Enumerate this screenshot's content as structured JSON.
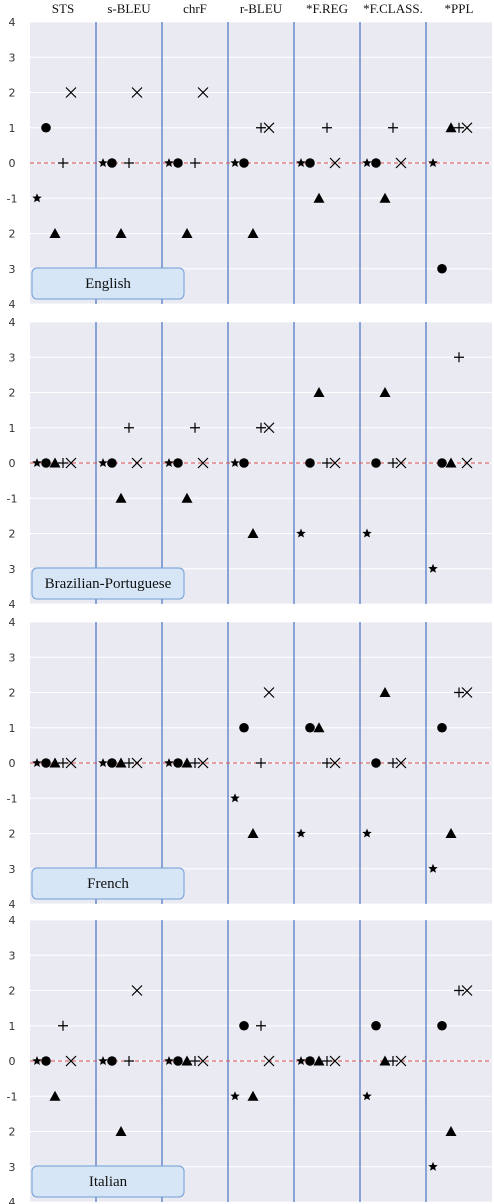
{
  "chart_data": {
    "type": "scatter",
    "metrics": [
      "STS",
      "s-BLEU",
      "chrF",
      "r-BLEU",
      "*F.REG",
      "*F.CLASS.",
      "*PPL"
    ],
    "yticks": [
      "4",
      "3",
      "2",
      "1",
      "0",
      "-1",
      "2",
      "3",
      "4"
    ],
    "ylim": [
      -4,
      4
    ],
    "reference_line": 0,
    "marker_types": [
      "star",
      "circle",
      "plus",
      "triangle",
      "x"
    ],
    "colors": {
      "panel_bg": "#eaeaf2",
      "separator": "#4a72c4",
      "reference_line": "#d9534f",
      "legend_bg": "#d6e6f7",
      "legend_border": "#6f9fd6",
      "marker": "#000000"
    },
    "panels": [
      {
        "language": "English",
        "points": {
          "STS": {
            "star": -1,
            "circle": 1,
            "plus": 0,
            "triangle": -2,
            "x": 2
          },
          "s-BLEU": {
            "star": 0,
            "circle": 0,
            "plus": 0,
            "triangle": -2,
            "x": 2
          },
          "chrF": {
            "star": 0,
            "circle": 0,
            "plus": 0,
            "triangle": -2,
            "x": 2
          },
          "r-BLEU": {
            "star": 0,
            "circle": 0,
            "plus": 1,
            "triangle": -2,
            "x": 1
          },
          "*F.REG": {
            "star": 0,
            "circle": 0,
            "plus": 1,
            "triangle": -1,
            "x": 0
          },
          "*F.CLASS.": {
            "star": 0,
            "circle": 0,
            "plus": 1,
            "triangle": -1,
            "x": 0
          },
          "*PPL": {
            "star": 0,
            "circle": -3,
            "plus": 1,
            "triangle": 1,
            "x": 1
          }
        }
      },
      {
        "language": "Brazilian-Portuguese",
        "points": {
          "STS": {
            "star": 0,
            "circle": 0,
            "plus": 0,
            "triangle": 0,
            "x": 0
          },
          "s-BLEU": {
            "star": 0,
            "circle": 0,
            "plus": 1,
            "triangle": -1,
            "x": 0
          },
          "chrF": {
            "star": 0,
            "circle": 0,
            "plus": 1,
            "triangle": -1,
            "x": 0
          },
          "r-BLEU": {
            "star": 0,
            "circle": 0,
            "plus": 1,
            "triangle": -2,
            "x": 1
          },
          "*F.REG": {
            "star": -2,
            "circle": 0,
            "plus": 0,
            "triangle": 2,
            "x": 0
          },
          "*F.CLASS.": {
            "star": -2,
            "circle": 0,
            "plus": 0,
            "triangle": 2,
            "x": 0
          },
          "*PPL": {
            "star": -3,
            "circle": 0,
            "plus": 3,
            "triangle": 0,
            "x": 0
          }
        }
      },
      {
        "language": "French",
        "points": {
          "STS": {
            "star": 0,
            "circle": 0,
            "plus": 0,
            "triangle": 0,
            "x": 0
          },
          "s-BLEU": {
            "star": 0,
            "circle": 0,
            "plus": 0,
            "triangle": 0,
            "x": 0
          },
          "chrF": {
            "star": 0,
            "circle": 0,
            "plus": 0,
            "triangle": 0,
            "x": 0
          },
          "r-BLEU": {
            "star": -1,
            "circle": 1,
            "plus": 0,
            "triangle": -2,
            "x": 2
          },
          "*F.REG": {
            "star": -2,
            "circle": 1,
            "plus": 0,
            "triangle": 1,
            "x": 0
          },
          "*F.CLASS.": {
            "star": -2,
            "circle": 0,
            "plus": 0,
            "triangle": 2,
            "x": 0
          },
          "*PPL": {
            "star": -3,
            "circle": 1,
            "plus": 2,
            "triangle": -2,
            "x": 2
          }
        }
      },
      {
        "language": "Italian",
        "points": {
          "STS": {
            "star": 0,
            "circle": 0,
            "plus": 1,
            "triangle": -1,
            "x": 0
          },
          "s-BLEU": {
            "star": 0,
            "circle": 0,
            "plus": 0,
            "triangle": -2,
            "x": 2
          },
          "chrF": {
            "star": 0,
            "circle": 0,
            "plus": 0,
            "triangle": 0,
            "x": 0
          },
          "r-BLEU": {
            "star": -1,
            "circle": 1,
            "plus": 1,
            "triangle": -1,
            "x": 0
          },
          "*F.REG": {
            "star": 0,
            "circle": 0,
            "plus": 0,
            "triangle": 0,
            "x": 0
          },
          "*F.CLASS.": {
            "star": -1,
            "circle": 1,
            "plus": 0,
            "triangle": 0,
            "x": 0
          },
          "*PPL": {
            "star": -3,
            "circle": 1,
            "plus": 2,
            "triangle": -2,
            "x": 2
          }
        }
      }
    ]
  }
}
